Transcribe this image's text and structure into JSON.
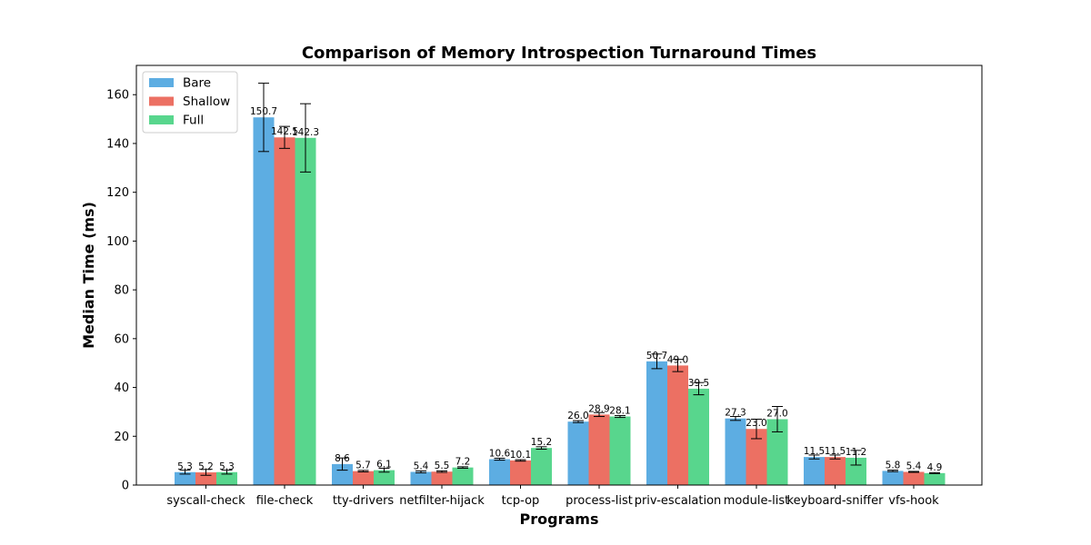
{
  "chart_data": {
    "type": "bar",
    "title": "Comparison of Memory Introspection Turnaround Times",
    "xlabel": "Programs",
    "ylabel": "Median Time (ms)",
    "ylim": [
      0,
      172
    ],
    "yticks": [
      0,
      20,
      40,
      60,
      80,
      100,
      120,
      140,
      160
    ],
    "grid": false,
    "legend_position": "top-left",
    "categories": [
      "syscall-check",
      "file-check",
      "tty-drivers",
      "netfilter-hijack",
      "tcp-op",
      "process-list",
      "priv-escalation",
      "module-list",
      "keyboard-sniffer",
      "vfs-hook"
    ],
    "series": [
      {
        "name": "Bare",
        "color": "#5DADE2",
        "values": [
          5.3,
          150.7,
          8.6,
          5.4,
          10.6,
          26.0,
          50.7,
          27.3,
          11.5,
          5.8
        ],
        "value_labels": [
          "5.3",
          "150.7",
          "8.6",
          "5.4",
          "10.6",
          "26.0",
          "50.7",
          "27.3",
          "11.5",
          "5.8"
        ],
        "errors": [
          0.8,
          14.0,
          2.5,
          0.4,
          0.4,
          0.4,
          3.0,
          0.8,
          0.8,
          0.3
        ]
      },
      {
        "name": "Shallow",
        "color": "#EC7063",
        "values": [
          5.2,
          142.5,
          5.7,
          5.5,
          10.1,
          28.9,
          49.0,
          23.0,
          11.5,
          5.4
        ],
        "value_labels": [
          "5.2",
          "142.5",
          "5.7",
          "5.5",
          "10.1",
          "28.9",
          "49.0",
          "23.0",
          "11.5",
          "5.4"
        ],
        "errors": [
          1.2,
          4.5,
          0.3,
          0.3,
          0.3,
          0.8,
          2.5,
          4.0,
          0.8,
          0.2
        ]
      },
      {
        "name": "Full",
        "color": "#58D68D",
        "values": [
          5.3,
          142.3,
          6.1,
          7.2,
          15.2,
          28.1,
          39.5,
          27.0,
          11.2,
          4.9
        ],
        "value_labels": [
          "5.3",
          "142.3",
          "6.1",
          "7.2",
          "15.2",
          "28.1",
          "39.5",
          "27.0",
          "11.2",
          "4.9"
        ],
        "errors": [
          0.8,
          14.0,
          0.8,
          0.3,
          0.5,
          0.4,
          2.5,
          5.2,
          3.0,
          0.2
        ]
      }
    ]
  }
}
